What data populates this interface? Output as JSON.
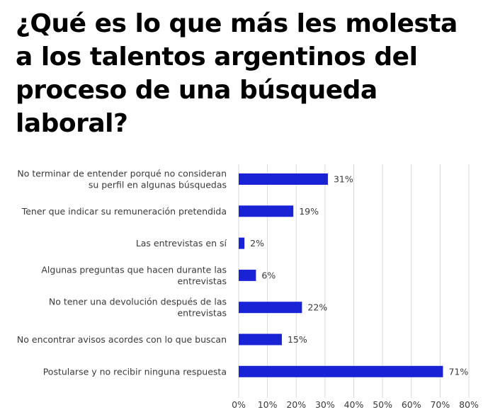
{
  "title": "¿Qué es lo que más les molesta\na los talentos argentinos del\nproceso de una búsqueda\nlaboral?",
  "chart_data": {
    "type": "bar",
    "orientation": "horizontal",
    "title": "¿Qué es lo que más les molesta a los talentos argentinos del proceso de una búsqueda laboral?",
    "categories": [
      [
        "No terminar de entender porqué no consideran",
        "su perfil en algunas búsquedas"
      ],
      [
        "Tener que indicar su remuneración pretendida"
      ],
      [
        "Las entrevistas en sí"
      ],
      [
        "Algunas preguntas que hacen durante las",
        "entrevistas"
      ],
      [
        "No tener una devolución después de las",
        "entrevistas"
      ],
      [
        "No encontrar avisos acordes con lo que buscan"
      ],
      [
        "Postularse y no recibir ninguna respuesta"
      ]
    ],
    "values": [
      31,
      19,
      2,
      6,
      22,
      15,
      71
    ],
    "value_labels": [
      "31%",
      "19%",
      "2%",
      "6%",
      "22%",
      "15%",
      "71%"
    ],
    "xlim": [
      0,
      80
    ],
    "x_ticks": [
      0,
      10,
      20,
      30,
      40,
      50,
      60,
      70,
      80
    ],
    "x_tick_labels": [
      "0%",
      "10%",
      "20%",
      "30%",
      "40%",
      "50%",
      "60%",
      "70%",
      "80%"
    ],
    "grid": true,
    "bar_color": "#1a22d6",
    "grid_color": "#d9d9d9",
    "xlabel": "",
    "ylabel": ""
  }
}
